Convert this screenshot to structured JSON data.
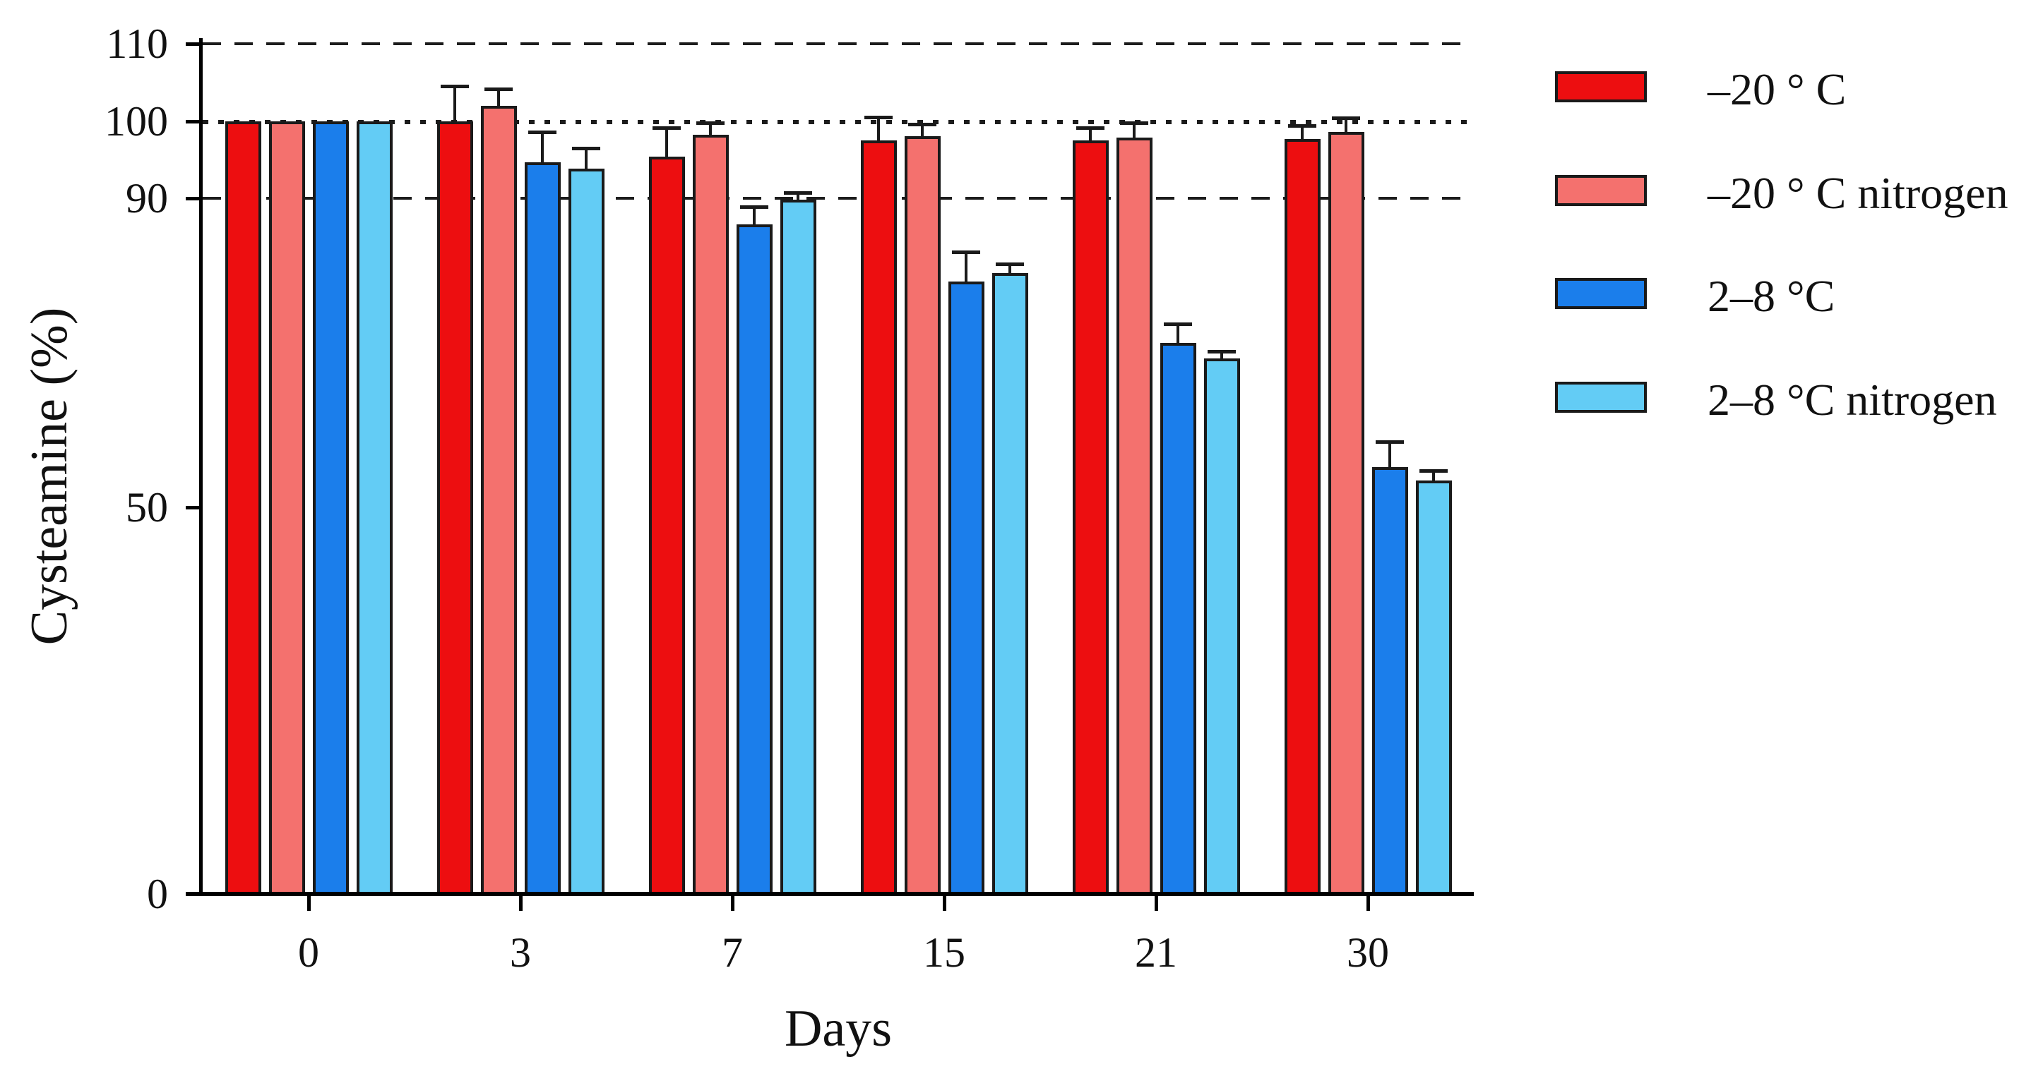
{
  "figure": {
    "background": "#ffffff",
    "axis_color": "#000000",
    "bar_border_color": "#1a1a1a",
    "gridline_color": "#1c1c1c"
  },
  "chart_data": {
    "type": "bar",
    "title": "",
    "xlabel": "Days",
    "ylabel": "Cysteamine (%)",
    "categories": [
      "0",
      "3",
      "7",
      "15",
      "21",
      "30"
    ],
    "series": [
      {
        "name": "–20 ° C",
        "color": "#ED0E10",
        "values": [
          100,
          100,
          95.4,
          97.5,
          97.5,
          97.7
        ],
        "errors_plus": [
          0,
          4.5,
          3.7,
          3.0,
          1.6,
          1.7
        ]
      },
      {
        "name": "–20 ° C nitrogen",
        "color": "#F4716E",
        "values": [
          100,
          102,
          98.2,
          98.0,
          97.9,
          98.6
        ],
        "errors_plus": [
          0,
          2.2,
          1.6,
          1.6,
          1.9,
          1.8
        ]
      },
      {
        "name": "2–8 °C",
        "color": "#1B7EEB",
        "values": [
          100,
          94.7,
          86.6,
          79.2,
          71.3,
          55.2
        ],
        "errors_plus": [
          0,
          3.9,
          2.3,
          3.9,
          2.5,
          3.3
        ]
      },
      {
        "name": "2–8 °C nitrogen",
        "color": "#63CCF5",
        "values": [
          100,
          93.8,
          89.8,
          80.3,
          69.3,
          53.5
        ],
        "errors_plus": [
          0,
          2.7,
          0.9,
          1.2,
          0.9,
          1.3
        ]
      }
    ],
    "y_ticks": [
      0,
      50,
      90,
      100,
      110
    ],
    "ylim": [
      0,
      110
    ],
    "gridlines": [
      {
        "value": 110,
        "style": "dashed"
      },
      {
        "value": 100,
        "style": "dotted"
      },
      {
        "value": 90,
        "style": "dashed"
      }
    ],
    "error_bars": {
      "direction": "up",
      "caps": true
    },
    "legend_position": "right"
  }
}
